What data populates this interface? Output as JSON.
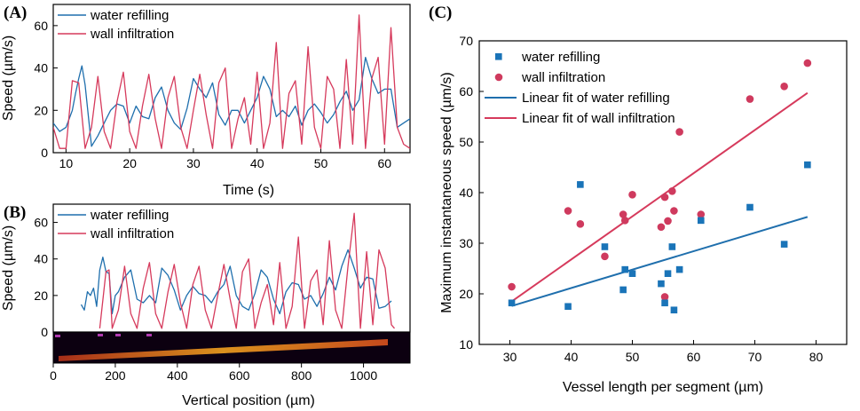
{
  "colors": {
    "water": "#1f6fad",
    "wall": "#d63a5c",
    "water_marker": "#1a74b8",
    "wall_marker": "#cf3a5e"
  },
  "chart_data": [
    {
      "id": "A",
      "panel_label": "(A)",
      "type": "line",
      "xlabel": "Time (s)",
      "ylabel": "Speed (µm/s)",
      "xlim": [
        8,
        64
      ],
      "ylim": [
        0,
        70
      ],
      "xticks": [
        10,
        20,
        30,
        40,
        50,
        60
      ],
      "yticks": [
        0,
        20,
        40,
        60
      ],
      "legend_position": "top-left",
      "series": [
        {
          "name": "water refilling",
          "x": [
            8,
            9,
            10,
            11,
            11.5,
            12,
            12.5,
            13,
            14,
            15,
            16,
            17,
            18,
            19,
            20,
            21,
            22,
            23,
            24,
            25,
            26,
            27,
            28,
            29,
            30,
            31,
            32,
            33,
            34,
            35,
            36,
            37,
            38,
            39,
            40,
            41,
            42,
            43,
            44,
            45,
            46,
            47,
            48,
            49,
            50,
            51,
            52,
            53,
            54,
            55,
            56,
            57,
            58,
            59,
            60,
            61,
            62,
            63,
            64
          ],
          "y": [
            14,
            10,
            12,
            20,
            28,
            35,
            41,
            32,
            3,
            8,
            14,
            20,
            23,
            22,
            14,
            22,
            17,
            16,
            26,
            31,
            20,
            14,
            11,
            21,
            35,
            30,
            26,
            33,
            18,
            13,
            20,
            20,
            14,
            20,
            26,
            36,
            30,
            17,
            20,
            17,
            22,
            13,
            20,
            23,
            19,
            14,
            18,
            24,
            29,
            20,
            25,
            45,
            35,
            28,
            30,
            30,
            12,
            14,
            16
          ]
        },
        {
          "name": "wall infiltration",
          "x": [
            8,
            9,
            10,
            11,
            12,
            13,
            14,
            15,
            16,
            17,
            18,
            19,
            20,
            21,
            22,
            23,
            24,
            25,
            26,
            27,
            28,
            29,
            30,
            31,
            32,
            33,
            34,
            35,
            36,
            37,
            38,
            39,
            40,
            41,
            42,
            43,
            44,
            45,
            46,
            47,
            48,
            49,
            50,
            51,
            52,
            53,
            54,
            55,
            56,
            57,
            58,
            59,
            60,
            61,
            62,
            63,
            64
          ],
          "y": [
            12,
            2,
            2,
            34,
            33,
            2,
            12,
            36,
            10,
            2,
            24,
            38,
            10,
            2,
            22,
            37,
            16,
            2,
            26,
            36,
            12,
            2,
            20,
            37,
            18,
            2,
            33,
            40,
            2,
            16,
            26,
            4,
            38,
            2,
            14,
            52,
            2,
            28,
            34,
            4,
            50,
            12,
            2,
            36,
            30,
            2,
            44,
            4,
            65,
            2,
            35,
            45,
            4,
            59,
            12,
            4,
            2
          ]
        }
      ]
    },
    {
      "id": "B",
      "panel_label": "(B)",
      "type": "line",
      "xlabel": "Vertical position (µm)",
      "ylabel": "Speed (µm/s)",
      "xlim": [
        0,
        1150
      ],
      "ylim": [
        0,
        70
      ],
      "xticks": [
        0,
        200,
        400,
        600,
        800,
        1000
      ],
      "yticks": [
        0,
        20,
        40,
        60
      ],
      "legend_position": "top-left",
      "series": [
        {
          "name": "water refilling",
          "x": [
            90,
            100,
            110,
            120,
            130,
            140,
            150,
            160,
            170,
            180,
            190,
            200,
            210,
            230,
            250,
            270,
            290,
            310,
            330,
            350,
            370,
            390,
            410,
            430,
            450,
            470,
            490,
            510,
            530,
            550,
            570,
            590,
            610,
            630,
            650,
            670,
            690,
            710,
            730,
            750,
            770,
            790,
            810,
            830,
            850,
            870,
            890,
            910,
            930,
            950,
            970,
            990,
            1010,
            1030,
            1050,
            1070,
            1090
          ],
          "y": [
            15,
            12,
            22,
            20,
            24,
            14,
            34,
            41,
            33,
            32,
            10,
            20,
            22,
            30,
            34,
            18,
            16,
            20,
            16,
            35,
            31,
            23,
            12,
            20,
            25,
            21,
            20,
            16,
            22,
            26,
            36,
            20,
            14,
            12,
            21,
            34,
            30,
            18,
            10,
            22,
            27,
            26,
            18,
            20,
            14,
            21,
            30,
            23,
            36,
            45,
            35,
            24,
            30,
            29,
            13,
            14,
            17
          ]
        },
        {
          "name": "wall infiltration",
          "x": [
            150,
            170,
            180,
            190,
            210,
            230,
            250,
            270,
            290,
            310,
            330,
            350,
            370,
            390,
            410,
            430,
            450,
            470,
            490,
            510,
            530,
            550,
            570,
            590,
            610,
            630,
            650,
            670,
            690,
            710,
            730,
            750,
            770,
            790,
            810,
            830,
            850,
            870,
            890,
            910,
            930,
            950,
            970,
            990,
            1010,
            1030,
            1050,
            1070,
            1090,
            1100
          ],
          "y": [
            2,
            33,
            34,
            2,
            12,
            36,
            10,
            2,
            24,
            38,
            10,
            2,
            22,
            37,
            16,
            2,
            26,
            36,
            12,
            2,
            20,
            37,
            18,
            2,
            33,
            40,
            2,
            16,
            26,
            4,
            38,
            2,
            14,
            52,
            2,
            28,
            34,
            4,
            50,
            12,
            2,
            36,
            65,
            2,
            44,
            4,
            45,
            35,
            4,
            2
          ]
        }
      ]
    },
    {
      "id": "C",
      "panel_label": "(C)",
      "type": "scatter",
      "xlabel": "Vessel length per segment (µm)",
      "ylabel": "Maximum instantaneous speed (µm/s)",
      "xlim": [
        25,
        85
      ],
      "ylim": [
        10,
        70
      ],
      "xticks": [
        30,
        40,
        50,
        60,
        70,
        80
      ],
      "yticks": [
        10,
        20,
        30,
        40,
        50,
        60,
        70
      ],
      "legend_position": "top-left",
      "series": [
        {
          "name": "water refilling",
          "marker": "square",
          "points": [
            [
              30.3,
              18.2
            ],
            [
              39.5,
              17.5
            ],
            [
              41.5,
              41.6
            ],
            [
              45.5,
              29.3
            ],
            [
              48.5,
              20.8
            ],
            [
              48.8,
              24.8
            ],
            [
              50.0,
              24.0
            ],
            [
              54.7,
              22.0
            ],
            [
              55.3,
              18.2
            ],
            [
              55.8,
              24.0
            ],
            [
              56.5,
              29.3
            ],
            [
              56.8,
              16.8
            ],
            [
              57.7,
              24.8
            ],
            [
              61.2,
              34.5
            ],
            [
              69.2,
              37.1
            ],
            [
              74.8,
              29.8
            ],
            [
              78.6,
              45.5
            ]
          ]
        },
        {
          "name": "wall infiltration",
          "marker": "circle",
          "points": [
            [
              30.3,
              21.4
            ],
            [
              39.5,
              36.4
            ],
            [
              41.5,
              33.8
            ],
            [
              45.5,
              27.4
            ],
            [
              48.5,
              35.7
            ],
            [
              48.8,
              34.5
            ],
            [
              50.0,
              39.6
            ],
            [
              54.7,
              33.2
            ],
            [
              55.3,
              39.1
            ],
            [
              55.3,
              19.4
            ],
            [
              55.8,
              34.4
            ],
            [
              56.5,
              40.3
            ],
            [
              56.8,
              36.4
            ],
            [
              57.7,
              52.0
            ],
            [
              61.2,
              35.7
            ],
            [
              69.2,
              58.5
            ],
            [
              74.8,
              61.0
            ],
            [
              78.6,
              65.6
            ]
          ]
        },
        {
          "name": "Linear fit of water refilling",
          "type": "line",
          "x": [
            30.3,
            78.6
          ],
          "y": [
            17.6,
            35.2
          ]
        },
        {
          "name": "Linear fit of wall infiltration",
          "type": "line",
          "x": [
            30.3,
            78.6
          ],
          "y": [
            18.5,
            59.7
          ]
        }
      ]
    }
  ]
}
